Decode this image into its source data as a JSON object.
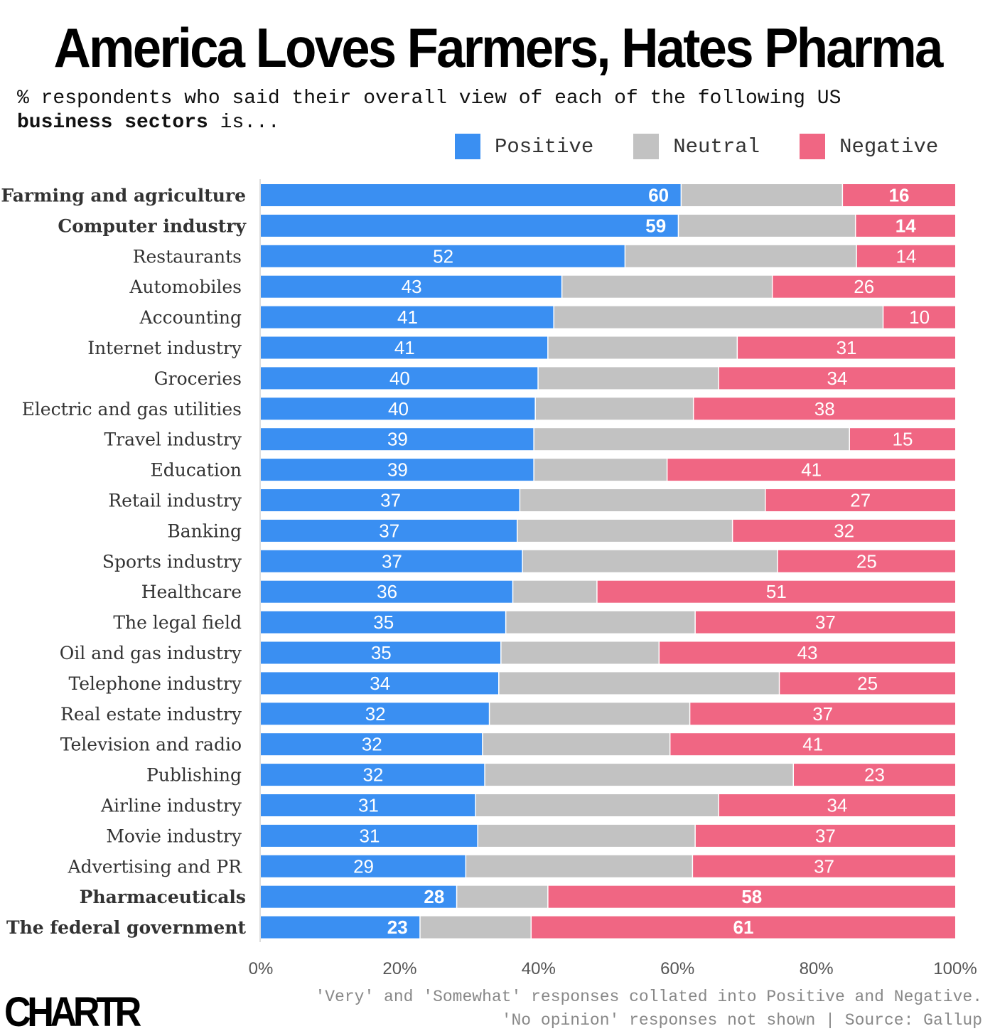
{
  "title": "America Loves Farmers, Hates Pharma",
  "subtitle_regular": "% respondents who said their overall view of each of the following US",
  "subtitle_bold": "business sectors",
  "subtitle_end": " is...",
  "note_line1": "'Very' and 'Somewhat' responses collated into Positive and Negative.",
  "note_line2": "'No opinion' responses not shown | Source: Gallup",
  "logo": "CHARTR",
  "colors": {
    "positive": "#3a8ff2",
    "neutral": "#c2c2c2",
    "negative": "#f06683"
  },
  "chart_data": {
    "type": "bar",
    "orientation": "horizontal-stacked",
    "xlim": [
      0,
      100
    ],
    "xticks": [
      "0%",
      "20%",
      "40%",
      "60%",
      "80%",
      "100%"
    ],
    "legend": [
      "Positive",
      "Neutral",
      "Negative"
    ],
    "legend_placement": "top-right",
    "categories": [
      "Farming and agriculture",
      "Computer industry",
      "Restaurants",
      "Automobiles",
      "Accounting",
      "Internet industry",
      "Groceries",
      "Electric and gas utilities",
      "Travel industry",
      "Education",
      "Retail industry",
      "Banking",
      "Sports industry",
      "Healthcare",
      "The legal field",
      "Oil and gas industry",
      "Telephone industry",
      "Real estate industry",
      "Television and radio",
      "Publishing",
      "Airline industry",
      "Movie industry",
      "Advertising and PR",
      "Pharmaceuticals",
      "The federal government"
    ],
    "bold_categories": [
      "Farming and agriculture",
      "Computer industry",
      "Pharmaceuticals",
      "The federal government"
    ],
    "series": [
      {
        "name": "Positive",
        "values": [
          60,
          59,
          52,
          43,
          41,
          41,
          40,
          40,
          39,
          39,
          37,
          37,
          37,
          36,
          35,
          35,
          34,
          32,
          32,
          32,
          31,
          31,
          29,
          28,
          23
        ]
      },
      {
        "name": "Neutral",
        "values": [
          23,
          25,
          33,
          30,
          46,
          27,
          26,
          23,
          45,
          19,
          35,
          31,
          36,
          12,
          27,
          23,
          40,
          28,
          27,
          44,
          35,
          31,
          32,
          13,
          16
        ]
      },
      {
        "name": "Negative",
        "values": [
          16,
          14,
          14,
          26,
          10,
          31,
          34,
          38,
          15,
          41,
          27,
          32,
          25,
          51,
          37,
          43,
          25,
          37,
          41,
          23,
          34,
          37,
          37,
          58,
          61
        ]
      }
    ]
  }
}
